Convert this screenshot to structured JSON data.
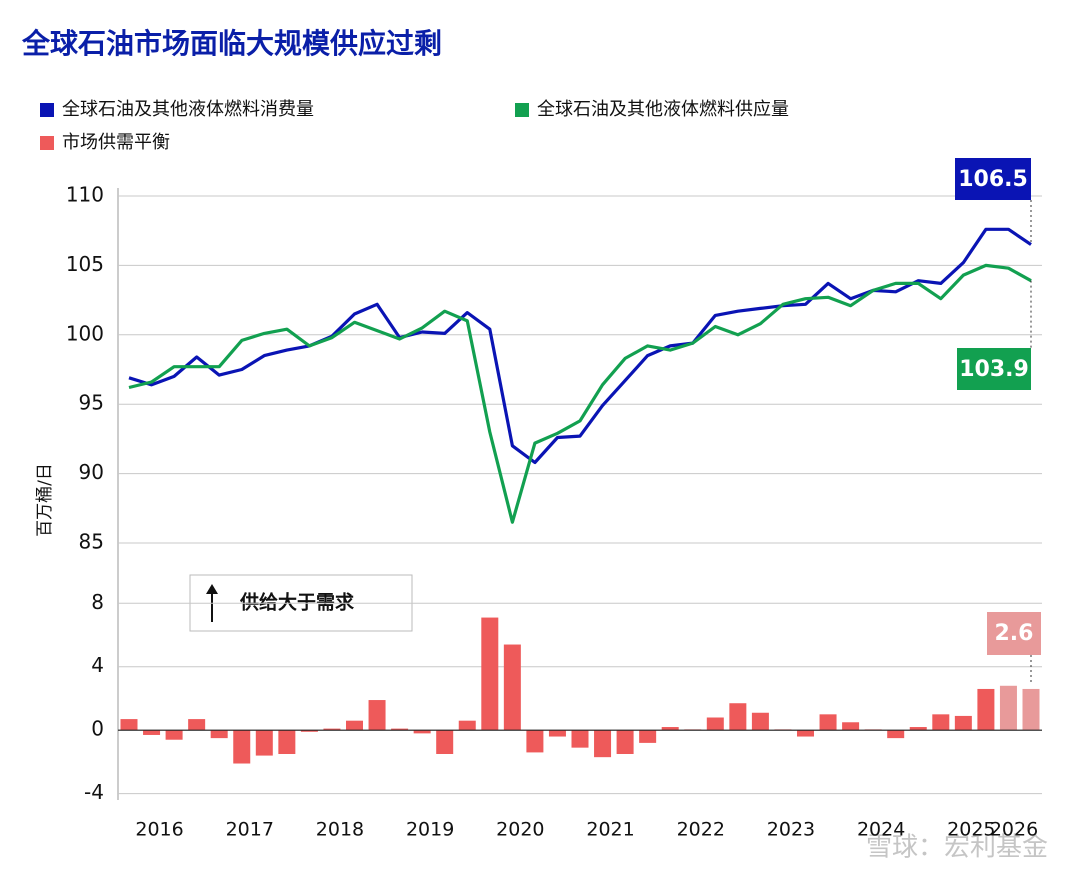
{
  "title": "全球石油市场面临大规模供应过剩",
  "watermark": "雪球：宏利基金",
  "chart_data": [
    {
      "type": "line",
      "y_label": "百万桶/日",
      "ylim": [
        85,
        110
      ],
      "yticks": [
        85,
        90,
        95,
        100,
        105,
        110
      ],
      "grid": true,
      "series": [
        {
          "name": "全球石油及其他液体燃料消费量",
          "color": "#0a14b4",
          "values": [
            96.9,
            96.4,
            97.0,
            98.4,
            97.1,
            97.5,
            98.5,
            98.9,
            99.2,
            99.9,
            101.5,
            102.2,
            99.8,
            100.2,
            100.1,
            101.6,
            100.4,
            92.0,
            90.8,
            92.6,
            92.7,
            94.9,
            96.7,
            98.5,
            99.2,
            99.4,
            101.4,
            101.7,
            101.9,
            102.1,
            102.2,
            103.7,
            102.6,
            103.2,
            103.1,
            103.9,
            103.7,
            105.2,
            107.6,
            107.6,
            106.5
          ]
        },
        {
          "name": "全球石油及其他液体燃料供应量",
          "color": "#12a050",
          "values": [
            96.2,
            96.6,
            97.7,
            97.7,
            97.7,
            99.6,
            100.1,
            100.4,
            99.2,
            99.8,
            100.9,
            100.3,
            99.7,
            100.5,
            101.7,
            101.0,
            93.0,
            86.5,
            92.2,
            92.9,
            93.8,
            96.4,
            98.3,
            99.2,
            98.9,
            99.4,
            100.6,
            100.0,
            100.8,
            102.2,
            102.6,
            102.7,
            102.1,
            103.2,
            103.7,
            103.7,
            102.6,
            104.3,
            105.0,
            104.8,
            103.9
          ]
        }
      ]
    },
    {
      "type": "bar",
      "annotation": "供给大于需求",
      "ylim": [
        -4.4,
        11.8
      ],
      "yticks": [
        -4,
        0,
        4,
        8
      ],
      "grid": true,
      "categories": [
        null,
        "2016",
        null,
        null,
        null,
        "2017",
        null,
        null,
        null,
        "2018",
        null,
        null,
        null,
        "2019",
        null,
        null,
        null,
        "2020",
        null,
        null,
        null,
        "2021",
        null,
        null,
        null,
        "2022",
        null,
        null,
        null,
        "2023",
        null,
        null,
        null,
        "2024",
        null,
        null,
        null,
        "2025",
        null,
        null,
        "2026"
      ],
      "series": [
        {
          "name": "市场供需平衡",
          "color": "#ee5a5a",
          "values": [
            0.7,
            -0.3,
            -0.6,
            0.7,
            -0.5,
            -2.1,
            -1.6,
            -1.5,
            -0.1,
            0.1,
            0.6,
            1.9,
            0.1,
            -0.2,
            -1.5,
            0.6,
            7.1,
            5.4,
            -1.4,
            -0.4,
            -1.1,
            -1.7,
            -1.5,
            -0.8,
            0.2,
            0.05,
            0.8,
            1.7,
            1.1,
            0.05,
            -0.4,
            1.0,
            0.5,
            0.05,
            -0.5,
            0.2,
            1.0,
            0.9,
            2.6,
            2.8,
            2.6
          ],
          "colors": [
            "#ee5a5a",
            "#ee5a5a",
            "#ee5a5a",
            "#ee5a5a",
            "#ee5a5a",
            "#ee5a5a",
            "#ee5a5a",
            "#ee5a5a",
            "#ee5a5a",
            "#ee5a5a",
            "#ee5a5a",
            "#ee5a5a",
            "#ee5a5a",
            "#ee5a5a",
            "#ee5a5a",
            "#ee5a5a",
            "#ee5a5a",
            "#ee5a5a",
            "#ee5a5a",
            "#ee5a5a",
            "#ee5a5a",
            "#ee5a5a",
            "#ee5a5a",
            "#ee5a5a",
            "#ee5a5a",
            "#ee5a5a",
            "#ee5a5a",
            "#ee5a5a",
            "#ee5a5a",
            "#ee5a5a",
            "#ee5a5a",
            "#ee5a5a",
            "#ee5a5a",
            "#ee5a5a",
            "#ee5a5a",
            "#ee5a5a",
            "#ee5a5a",
            "#ee5a5a",
            "#ee5a5a",
            "#e89a9a",
            "#e89a9a"
          ]
        }
      ]
    }
  ]
}
